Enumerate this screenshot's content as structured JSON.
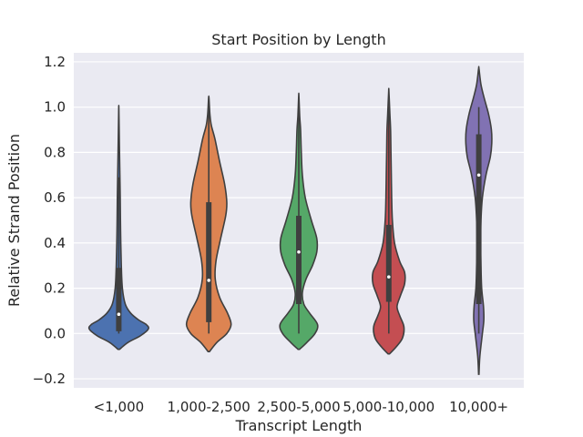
{
  "chart_data": {
    "type": "violin",
    "title": "Start Position by Length",
    "xlabel": "Transcript Length",
    "ylabel": "Relative Strand Position",
    "ylim": [
      -0.24,
      1.24
    ],
    "yticks": [
      -0.2,
      0.0,
      0.2,
      0.4,
      0.6,
      0.8,
      1.0,
      1.2
    ],
    "ytick_labels": [
      "−0.2",
      "0.0",
      "0.2",
      "0.4",
      "0.6",
      "0.8",
      "1.0",
      "1.2"
    ],
    "grid": true,
    "background": "#eaeaf2",
    "categories": [
      "<1,000",
      "1,000-2,500",
      "2,500-5,000",
      "5,000-10,000",
      "10,000+"
    ],
    "series": [
      {
        "category": "<1,000",
        "color": "#4c72b0",
        "min": 0.0,
        "q1": 0.01,
        "median": 0.085,
        "q3": 0.29,
        "max": 0.69,
        "extent": [
          -0.07,
          0.99
        ],
        "density": [
          [
            -0.07,
            0.02
          ],
          [
            -0.04,
            0.25
          ],
          [
            -0.01,
            0.6
          ],
          [
            0.02,
            0.82
          ],
          [
            0.04,
            0.76
          ],
          [
            0.06,
            0.55
          ],
          [
            0.09,
            0.33
          ],
          [
            0.13,
            0.18
          ],
          [
            0.2,
            0.1
          ],
          [
            0.3,
            0.07
          ],
          [
            0.45,
            0.05
          ],
          [
            0.6,
            0.04
          ],
          [
            0.7,
            0.03
          ],
          [
            0.85,
            0.015
          ],
          [
            0.99,
            0.002
          ]
        ]
      },
      {
        "category": "1,000-2,500",
        "color": "#dd8452",
        "min": 0.0,
        "q1": 0.05,
        "median": 0.235,
        "q3": 0.58,
        "max": 1.0,
        "extent": [
          -0.08,
          1.04
        ],
        "density": [
          [
            -0.08,
            0.02
          ],
          [
            -0.04,
            0.22
          ],
          [
            0.0,
            0.5
          ],
          [
            0.04,
            0.62
          ],
          [
            0.09,
            0.52
          ],
          [
            0.16,
            0.3
          ],
          [
            0.24,
            0.18
          ],
          [
            0.32,
            0.2
          ],
          [
            0.42,
            0.33
          ],
          [
            0.52,
            0.47
          ],
          [
            0.58,
            0.5
          ],
          [
            0.66,
            0.44
          ],
          [
            0.76,
            0.3
          ],
          [
            0.86,
            0.17
          ],
          [
            0.92,
            0.07
          ],
          [
            0.97,
            0.03
          ],
          [
            1.04,
            0.005
          ]
        ]
      },
      {
        "category": "2,500-5,000",
        "color": "#55a868",
        "min": 0.0,
        "q1": 0.13,
        "median": 0.36,
        "q3": 0.52,
        "max": 1.0,
        "extent": [
          -0.07,
          1.05
        ],
        "density": [
          [
            -0.07,
            0.02
          ],
          [
            -0.04,
            0.22
          ],
          [
            0.0,
            0.45
          ],
          [
            0.04,
            0.52
          ],
          [
            0.09,
            0.3
          ],
          [
            0.13,
            0.14
          ],
          [
            0.18,
            0.1
          ],
          [
            0.24,
            0.2
          ],
          [
            0.3,
            0.38
          ],
          [
            0.36,
            0.5
          ],
          [
            0.42,
            0.5
          ],
          [
            0.5,
            0.35
          ],
          [
            0.6,
            0.18
          ],
          [
            0.7,
            0.1
          ],
          [
            0.8,
            0.07
          ],
          [
            0.9,
            0.05
          ],
          [
            0.96,
            0.025
          ],
          [
            1.05,
            0.003
          ]
        ]
      },
      {
        "category": "5,000-10,000",
        "color": "#c44e52",
        "min": 0.0,
        "q1": 0.14,
        "median": 0.25,
        "q3": 0.48,
        "max": 1.0,
        "extent": [
          -0.09,
          1.07
        ],
        "density": [
          [
            -0.09,
            0.02
          ],
          [
            -0.06,
            0.2
          ],
          [
            -0.02,
            0.38
          ],
          [
            0.03,
            0.42
          ],
          [
            0.08,
            0.3
          ],
          [
            0.12,
            0.23
          ],
          [
            0.17,
            0.33
          ],
          [
            0.22,
            0.44
          ],
          [
            0.27,
            0.44
          ],
          [
            0.32,
            0.3
          ],
          [
            0.4,
            0.16
          ],
          [
            0.5,
            0.1
          ],
          [
            0.6,
            0.08
          ],
          [
            0.7,
            0.07
          ],
          [
            0.8,
            0.06
          ],
          [
            0.9,
            0.05
          ],
          [
            0.97,
            0.03
          ],
          [
            1.07,
            0.003
          ]
        ]
      },
      {
        "category": "10,000+",
        "color": "#8172b3",
        "min": 0.0,
        "q1": 0.13,
        "median": 0.7,
        "q3": 0.88,
        "max": 1.0,
        "extent": [
          -0.18,
          1.17
        ],
        "density": [
          [
            -0.18,
            0.005
          ],
          [
            -0.1,
            0.03
          ],
          [
            0.0,
            0.1
          ],
          [
            0.06,
            0.14
          ],
          [
            0.12,
            0.13
          ],
          [
            0.2,
            0.08
          ],
          [
            0.3,
            0.06
          ],
          [
            0.4,
            0.05
          ],
          [
            0.5,
            0.06
          ],
          [
            0.6,
            0.1
          ],
          [
            0.7,
            0.2
          ],
          [
            0.78,
            0.32
          ],
          [
            0.84,
            0.36
          ],
          [
            0.9,
            0.35
          ],
          [
            0.97,
            0.27
          ],
          [
            1.04,
            0.15
          ],
          [
            1.1,
            0.06
          ],
          [
            1.17,
            0.005
          ]
        ]
      }
    ]
  }
}
